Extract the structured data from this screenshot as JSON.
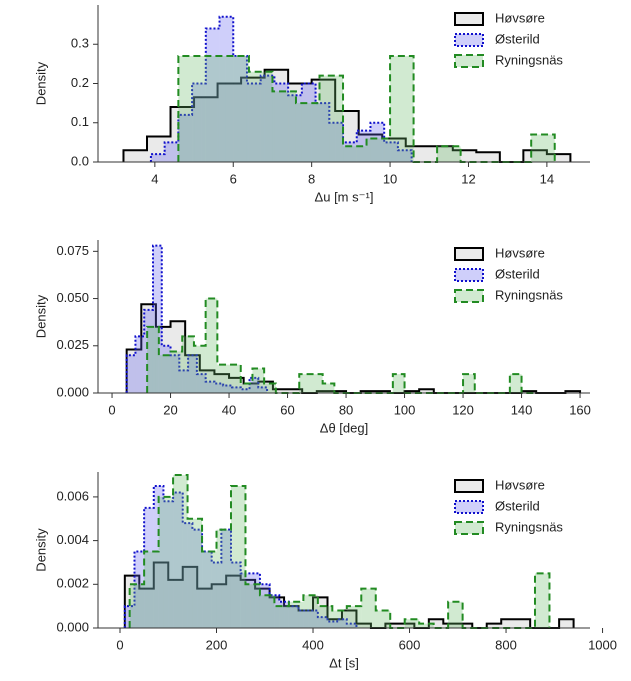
{
  "chart_data": [
    {
      "type": "histogram",
      "xlabel": "Δu [m s⁻¹]",
      "ylabel": "Density",
      "xlim": [
        2.55,
        15.1
      ],
      "ylim": [
        0,
        0.4
      ],
      "xticks": [
        4,
        6,
        8,
        10,
        12,
        14
      ],
      "yticks": [
        {
          "value": 0,
          "label": "0.0"
        },
        0.1,
        0.2,
        0.3
      ],
      "legend": "upper right",
      "series": [
        {
          "name": "Høvsøre",
          "color": "#000000",
          "fill": "#bbbbbb",
          "linestyle": "solid",
          "bins": [
            3.2,
            3.8,
            4.4,
            5.0,
            5.6,
            6.2,
            6.8,
            7.4,
            8.0,
            8.6,
            9.2,
            9.8,
            10.4,
            11.0,
            11.6,
            12.2,
            12.8,
            13.4,
            14.0,
            14.6
          ],
          "values": [
            0.03,
            0.065,
            0.14,
            0.165,
            0.2,
            0.215,
            0.235,
            0.2,
            0.21,
            0.13,
            0.07,
            0.06,
            0.04,
            0.04,
            0.03,
            0.025,
            0,
            0.03,
            0.02
          ]
        },
        {
          "name": "Østerild",
          "color": "#1010cc",
          "fill": "#6060ee",
          "linestyle": "dotted",
          "bins": [
            3.9,
            4.25,
            4.6,
            4.95,
            5.3,
            5.65,
            6.0,
            6.35,
            6.7,
            7.05,
            7.4,
            7.75,
            8.1,
            8.45,
            8.8,
            9.15,
            9.5,
            9.85,
            10.2,
            10.55
          ],
          "values": [
            0.02,
            0.05,
            0.12,
            0.2,
            0.34,
            0.37,
            0.27,
            0.2,
            0.22,
            0.2,
            0.17,
            0.2,
            0.15,
            0.1,
            0.05,
            0.08,
            0.1,
            0.05,
            0.03
          ]
        },
        {
          "name": "Ryningsnäs",
          "color": "#228b22",
          "fill": "#66bb66",
          "linestyle": "dashed",
          "bins": [
            4.6,
            5.2,
            5.8,
            6.4,
            7.0,
            7.6,
            8.2,
            8.8,
            9.4,
            10.0,
            10.6,
            11.2,
            11.8,
            12.4,
            13.0,
            13.6,
            14.2
          ],
          "values": [
            0.27,
            0.27,
            0.27,
            0.23,
            0.18,
            0.15,
            0.22,
            0.04,
            0.06,
            0.27,
            0,
            0.04,
            0,
            0,
            0,
            0.07
          ]
        }
      ]
    },
    {
      "type": "histogram",
      "xlabel": "Δθ [deg]",
      "ylabel": "Density",
      "xlim": [
        -4.8,
        163.4
      ],
      "ylim": [
        0,
        0.081
      ],
      "xticks": [
        0,
        20,
        40,
        60,
        80,
        100,
        120,
        140,
        160
      ],
      "yticks": [
        {
          "value": 0,
          "label": "0.000"
        },
        {
          "value": 0.025,
          "label": "0.025"
        },
        {
          "value": 0.05,
          "label": "0.050"
        },
        {
          "value": 0.075,
          "label": "0.075"
        }
      ],
      "legend": "upper right",
      "series": [
        {
          "name": "Høvsøre",
          "color": "#000000",
          "fill": "#bbbbbb",
          "linestyle": "solid",
          "bins": [
            5,
            10,
            15,
            20,
            25,
            30,
            35,
            40,
            45,
            50,
            55,
            60,
            65,
            70,
            75,
            80,
            85,
            90,
            95,
            100,
            105,
            110,
            115,
            120,
            125,
            130,
            135,
            140,
            145,
            150,
            155,
            160
          ],
          "values": [
            0.023,
            0.047,
            0.035,
            0.038,
            0.02,
            0.012,
            0.01,
            0.008,
            0.005,
            0.006,
            0.002,
            0.002,
            0,
            0.001,
            0.001,
            0,
            0.001,
            0.001,
            0,
            0.001,
            0.002,
            0,
            0,
            0,
            0,
            0,
            0,
            0.001,
            0,
            0,
            0.001
          ]
        },
        {
          "name": "Østerild",
          "color": "#1010cc",
          "fill": "#6060ee",
          "linestyle": "dotted",
          "bins": [
            5,
            8,
            11,
            14,
            17,
            20,
            23,
            26,
            29,
            32,
            35,
            38,
            41,
            44,
            47,
            50,
            53
          ],
          "values": [
            0.02,
            0.03,
            0.044,
            0.078,
            0.025,
            0.02,
            0.012,
            0.02,
            0.01,
            0.006,
            0.005,
            0.004,
            0.003,
            0.002,
            0.008,
            0.003
          ]
        },
        {
          "name": "Ryningsnäs",
          "color": "#228b22",
          "fill": "#66bb66",
          "linestyle": "dashed",
          "bins": [
            12,
            16,
            20,
            24,
            28,
            32,
            36,
            40,
            44,
            48,
            52,
            56,
            60,
            64,
            68,
            72,
            76,
            80,
            84,
            88,
            92,
            96,
            100,
            104,
            108,
            112,
            116,
            120,
            124,
            128,
            132,
            136,
            140,
            144
          ],
          "values": [
            0.035,
            0.02,
            0.022,
            0.03,
            0.025,
            0.05,
            0.015,
            0.015,
            0.005,
            0.013,
            0.005,
            0,
            0,
            0.01,
            0.01,
            0.005,
            0,
            0,
            0,
            0,
            0,
            0.01,
            0,
            0,
            0,
            0,
            0,
            0.01,
            0,
            0,
            0,
            0.01,
            0
          ]
        }
      ]
    },
    {
      "type": "histogram",
      "xlabel": "Δt [s]",
      "ylabel": "Density",
      "xlim": [
        -45.6,
        974
      ],
      "ylim": [
        0,
        0.00714
      ],
      "xticks": [
        0,
        200,
        400,
        600,
        800,
        1000
      ],
      "yticks": [
        {
          "value": 0,
          "label": "0.000"
        },
        0.002,
        0.004,
        0.006
      ],
      "legend": "upper right",
      "series": [
        {
          "name": "Høvsøre",
          "color": "#000000",
          "fill": "#bbbbbb",
          "linestyle": "solid",
          "bins": [
            10,
            40,
            70,
            100,
            130,
            160,
            190,
            220,
            250,
            280,
            310,
            340,
            370,
            400,
            430,
            460,
            490,
            520,
            550,
            580,
            610,
            640,
            670,
            700,
            730,
            760,
            790,
            820,
            850,
            880,
            910,
            940
          ],
          "values": [
            0.0024,
            0.0018,
            0.003,
            0.0022,
            0.0028,
            0.0018,
            0.002,
            0.0024,
            0.0022,
            0.0018,
            0.0014,
            0.001,
            0.0008,
            0.0014,
            0.0004,
            0.0008,
            0.0002,
            0,
            0.0002,
            0.0002,
            0,
            0.0004,
            0.0002,
            0.0002,
            0,
            0.0002,
            0.0004,
            0.0004,
            0,
            0,
            0.0004
          ]
        },
        {
          "name": "Østerild",
          "color": "#1010cc",
          "fill": "#6060ee",
          "linestyle": "dotted",
          "bins": [
            10,
            30,
            50,
            70,
            90,
            110,
            130,
            150,
            170,
            190,
            210,
            230,
            250,
            270,
            290,
            310,
            330,
            350,
            370,
            390,
            410,
            430,
            450,
            470,
            490
          ],
          "values": [
            0.001,
            0.0035,
            0.0055,
            0.0065,
            0.0058,
            0.0062,
            0.0048,
            0.0045,
            0.0035,
            0.003,
            0.0045,
            0.003,
            0.0025,
            0.0025,
            0.002,
            0.0015,
            0.0012,
            0.001,
            0.0008,
            0.0008,
            0.0005,
            0.0003,
            0.0004,
            0.0002
          ]
        },
        {
          "name": "Ryningsnäs",
          "color": "#228b22",
          "fill": "#66bb66",
          "linestyle": "dashed",
          "bins": [
            20,
            50,
            80,
            110,
            140,
            170,
            200,
            230,
            260,
            290,
            320,
            350,
            380,
            410,
            440,
            470,
            500,
            530,
            560,
            590,
            620,
            650,
            680,
            710,
            740,
            770,
            800,
            830,
            860,
            890
          ],
          "values": [
            0.002,
            0.0035,
            0.006,
            0.007,
            0.005,
            0.0035,
            0.0045,
            0.0065,
            0.002,
            0.0015,
            0.001,
            0.0012,
            0.0015,
            0.001,
            0.0008,
            0.001,
            0.0018,
            0.0008,
            0,
            0.0004,
            0.0002,
            0,
            0.0012,
            0,
            0,
            0,
            0,
            0,
            0.0025
          ]
        }
      ]
    }
  ]
}
